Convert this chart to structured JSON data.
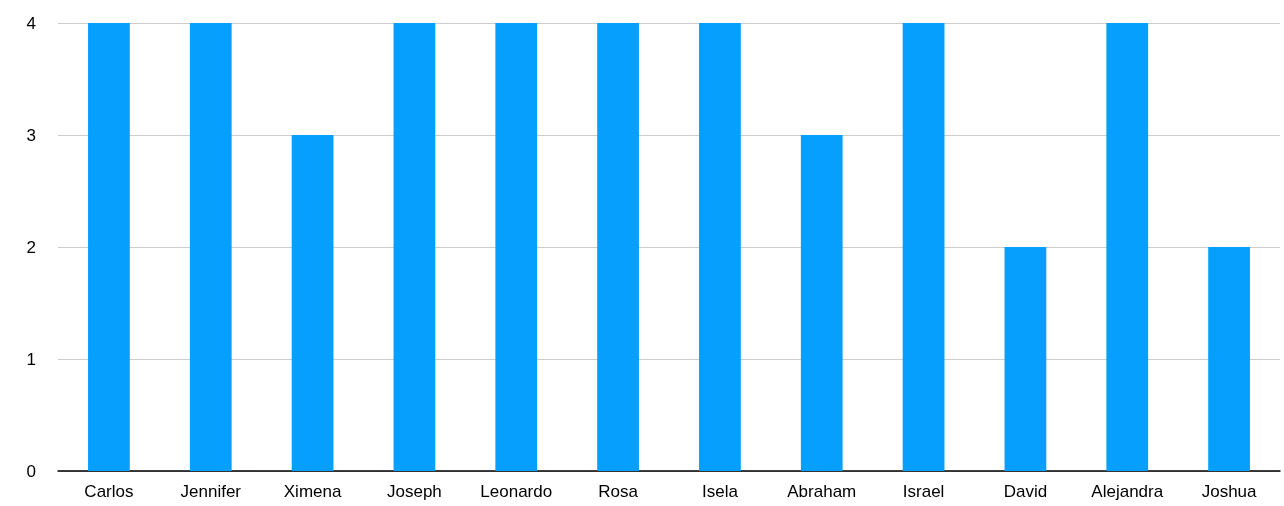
{
  "chart_data": {
    "type": "bar",
    "categories": [
      "Carlos",
      "Jennifer",
      "Ximena",
      "Joseph",
      "Leonardo",
      "Rosa",
      "Isela",
      "Abraham",
      "Israel",
      "David",
      "Alejandra",
      "Joshua"
    ],
    "values": [
      4,
      4,
      3,
      4,
      4,
      4,
      4,
      3,
      4,
      2,
      4,
      2
    ],
    "color": "#069ffe",
    "ylim": [
      0,
      4
    ],
    "yticks": [
      0,
      1,
      2,
      3,
      4
    ],
    "grid": "y"
  }
}
